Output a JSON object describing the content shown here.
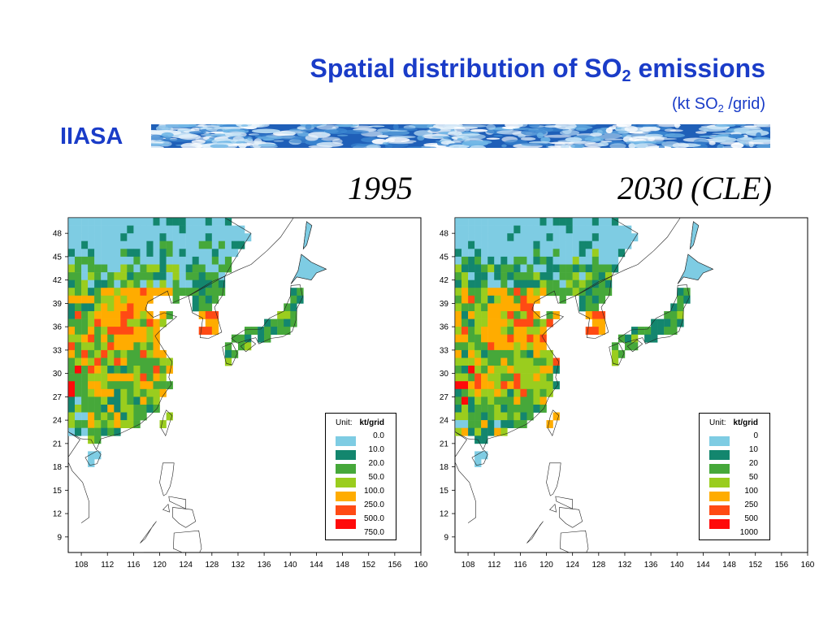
{
  "header": {
    "title_main": "Spatial distribution of SO",
    "title_sub": "2",
    "title_end": " emissions",
    "units_prefix": "(kt SO",
    "units_sub": "2",
    "units_end": " /grid)",
    "org": "IIASA"
  },
  "colors": {
    "title": "#1a3cc8",
    "classes": [
      "#7ecce3",
      "#13866e",
      "#46a83a",
      "#9acd1e",
      "#ffac00",
      "#ff4a14",
      "#ff0a0a"
    ]
  },
  "axes": {
    "x_ticks": [
      "108",
      "112",
      "116",
      "120",
      "124",
      "128",
      "132",
      "136",
      "140",
      "144",
      "148",
      "152",
      "156",
      "160"
    ],
    "y_ticks": [
      "48",
      "45",
      "42",
      "39",
      "36",
      "33",
      "30",
      "27",
      "24",
      "21",
      "18",
      "15",
      "12",
      "9"
    ]
  },
  "panels": [
    {
      "label": "1995",
      "legend": {
        "unit_label": "Unit:",
        "unit_value": "kt/grid",
        "values": [
          "0.0",
          "10.0",
          "20.0",
          "50.0",
          "100.0",
          "250.0",
          "500.0",
          "750.0"
        ]
      }
    },
    {
      "label": "2030 (CLE)",
      "legend": {
        "unit_label": "Unit:",
        "unit_value": "kt/grid",
        "values": [
          "0",
          "10",
          "20",
          "50",
          "100",
          "250",
          "500",
          "1000"
        ]
      }
    }
  ]
}
